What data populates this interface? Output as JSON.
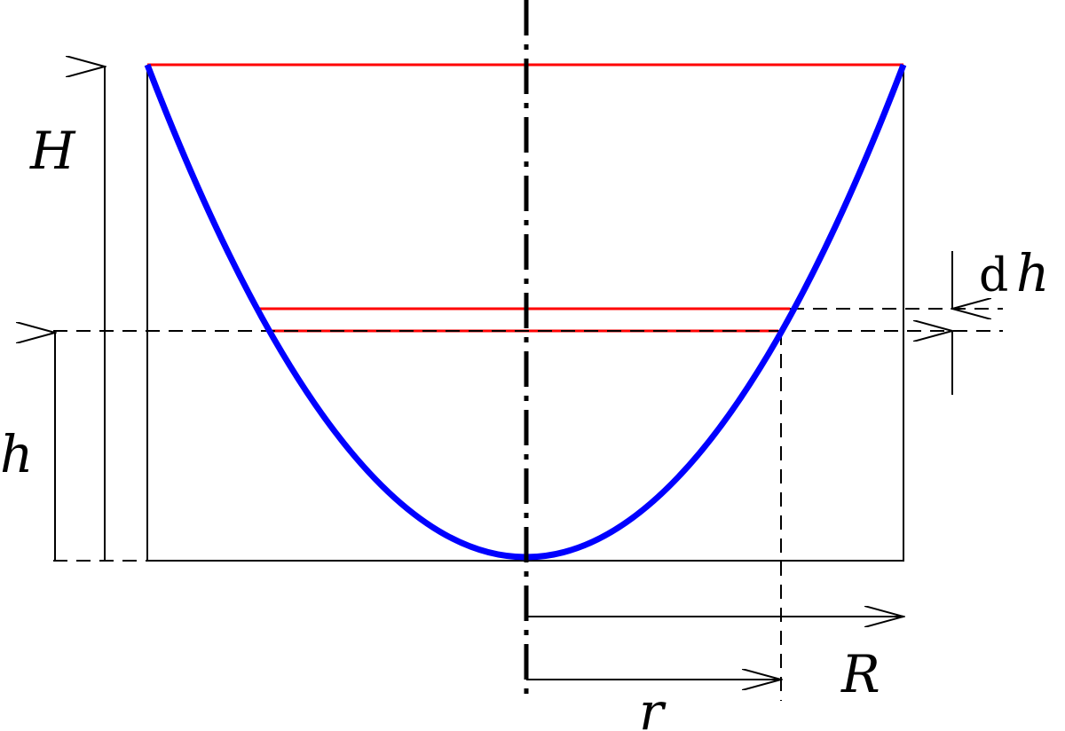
{
  "labels": {
    "H": "H",
    "h": "h",
    "dh_d": "d",
    "dh_h": "h",
    "R": "R",
    "r": "r"
  },
  "colors": {
    "paraboloid": "#0000ff",
    "water_levels": "#ff0000",
    "lines": "#000000"
  }
}
